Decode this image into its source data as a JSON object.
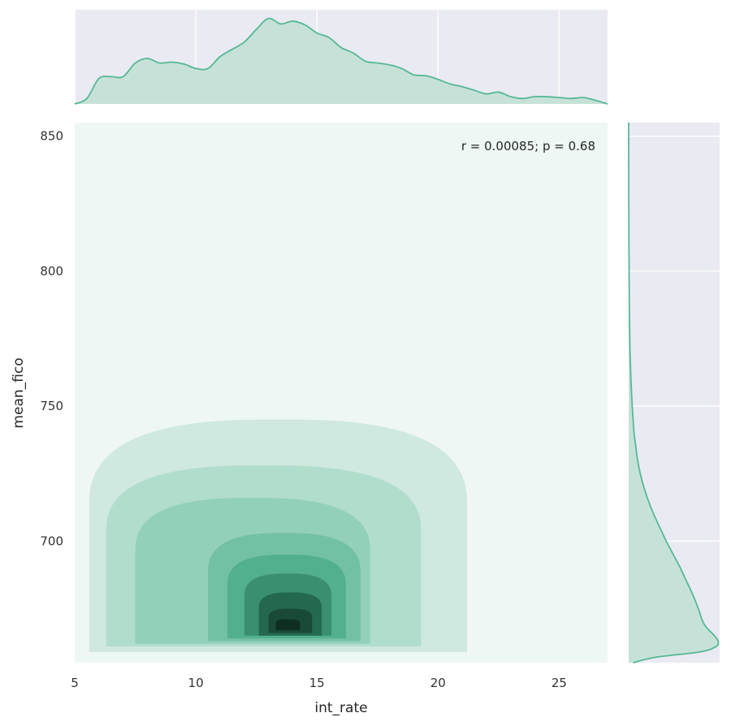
{
  "chart_data": {
    "type": "jointplot-kde",
    "xlabel": "int_rate",
    "ylabel": "mean_fico",
    "xlim": [
      5,
      27
    ],
    "ylim": [
      655,
      855
    ],
    "xticks": [
      5,
      10,
      15,
      20,
      25
    ],
    "yticks": [
      700,
      750,
      800,
      850
    ],
    "annotation": "r = 0.00085; p = 0.68",
    "grid": true,
    "colors": {
      "background": "#eaeaf2",
      "joint_background": "#eef7f4",
      "line": "#56b894",
      "fill": "#c6e2d8",
      "levels": [
        "#cfe9e0",
        "#b1ddcd",
        "#93d0ba",
        "#72c1a5",
        "#53b08e",
        "#3a8f70",
        "#24694f",
        "#184a37",
        "#0f2e22"
      ]
    },
    "kde_levels": [
      {
        "level": 1,
        "x": [
          5.6,
          21.2
        ],
        "y": [
          659,
          745
        ]
      },
      {
        "level": 2,
        "x": [
          6.3,
          19.3
        ],
        "y": [
          661,
          728
        ]
      },
      {
        "level": 3,
        "x": [
          7.5,
          17.2
        ],
        "y": [
          662,
          716
        ]
      },
      {
        "level": 4,
        "x": [
          10.5,
          16.8
        ],
        "y": [
          663,
          703
        ]
      },
      {
        "level": 5,
        "x": [
          11.3,
          16.2
        ],
        "y": [
          664,
          695
        ]
      },
      {
        "level": 6,
        "x": [
          12.0,
          15.6
        ],
        "y": [
          665,
          688
        ]
      },
      {
        "level": 7,
        "x": [
          12.6,
          15.2
        ],
        "y": [
          665,
          681
        ]
      },
      {
        "level": 8,
        "x": [
          13.0,
          14.8
        ],
        "y": [
          666,
          675
        ]
      },
      {
        "level": 9,
        "x": [
          13.3,
          14.3
        ],
        "y": [
          667,
          671
        ]
      }
    ],
    "x_marginal": {
      "x": [
        5,
        5.5,
        6,
        6.5,
        7,
        7.5,
        8,
        8.5,
        9,
        9.5,
        10,
        10.5,
        11,
        11.5,
        12,
        12.5,
        13,
        13.5,
        14,
        14.5,
        15,
        15.5,
        16,
        16.5,
        17,
        17.5,
        18,
        18.5,
        19,
        19.5,
        20,
        20.5,
        21,
        21.5,
        22,
        22.5,
        23,
        23.5,
        24,
        24.5,
        25,
        25.5,
        26,
        26.5,
        27
      ],
      "density": [
        0.0,
        0.06,
        0.28,
        0.3,
        0.3,
        0.45,
        0.5,
        0.45,
        0.46,
        0.44,
        0.39,
        0.39,
        0.52,
        0.6,
        0.68,
        0.82,
        0.94,
        0.88,
        0.91,
        0.87,
        0.78,
        0.73,
        0.62,
        0.56,
        0.47,
        0.45,
        0.43,
        0.39,
        0.32,
        0.31,
        0.27,
        0.22,
        0.19,
        0.15,
        0.11,
        0.13,
        0.08,
        0.06,
        0.08,
        0.08,
        0.07,
        0.06,
        0.07,
        0.04,
        0.0
      ]
    },
    "y_marginal": {
      "y": [
        655,
        657,
        659,
        661,
        663,
        665,
        667,
        669,
        671,
        673,
        675,
        680,
        685,
        690,
        695,
        700,
        705,
        710,
        715,
        720,
        725,
        730,
        735,
        740,
        745,
        750,
        760,
        770,
        780,
        790,
        800,
        810,
        820,
        830,
        840,
        850,
        855
      ],
      "density": [
        0.05,
        0.3,
        0.8,
        0.98,
        1.0,
        0.96,
        0.9,
        0.85,
        0.82,
        0.8,
        0.78,
        0.72,
        0.65,
        0.58,
        0.5,
        0.42,
        0.35,
        0.28,
        0.22,
        0.17,
        0.13,
        0.1,
        0.08,
        0.06,
        0.05,
        0.04,
        0.025,
        0.015,
        0.01,
        0.007,
        0.005,
        0.003,
        0.002,
        0.001,
        0.0005,
        0.0002,
        0.0
      ]
    }
  }
}
